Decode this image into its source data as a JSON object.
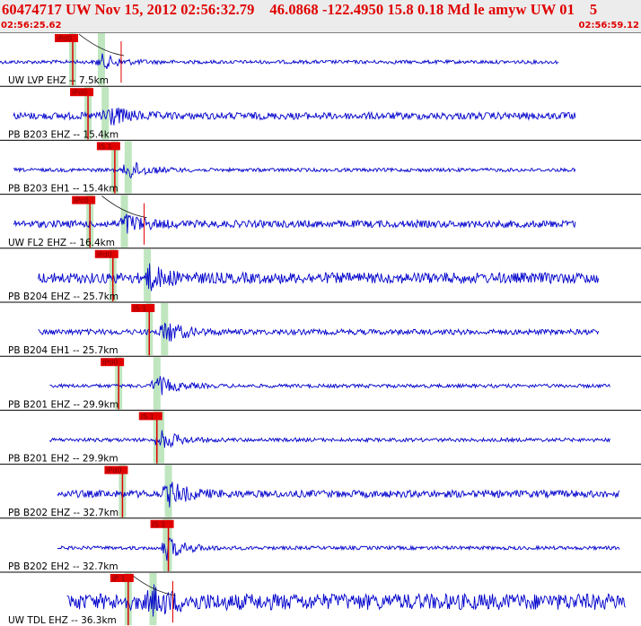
{
  "header": {
    "title": "60474717 UW Nov 15, 2012 02:56:32.79    46.0868 -122.4950 15.8 0.18 Md le amyw UW 01    5",
    "time_start": "02:56:25.62",
    "time_end": "02:56:59.12"
  },
  "colors": {
    "header_bg": "#ececec",
    "header_text": "#e00000",
    "trace": "#0000cc",
    "pick": "#e00000",
    "window": "#bfe6bf"
  },
  "traces": [
    {
      "label": "UW LVP EHZ -- 7.5km",
      "pick": "iPd0",
      "pick_type": "P",
      "pick_time": 3.8,
      "event_time": 5.3,
      "trace_start": 0.0,
      "trace_end": 29.2,
      "amp": 2,
      "burst": 8,
      "theo_mark": true
    },
    {
      "label": "PB B203 EHZ -- 15.4km",
      "pick": "iPd0",
      "pick_type": "P",
      "pick_time": 4.6,
      "event_time": 5.5,
      "trace_start": 0.7,
      "trace_end": 30.1,
      "amp": 4,
      "burst": 13,
      "theo_mark": false
    },
    {
      "label": "PB B203 EH1 -- 15.4km",
      "pick": "iS 1",
      "pick_type": "S",
      "pick_time": 6.0,
      "event_time": 6.7,
      "trace_start": 0.7,
      "trace_end": 30.1,
      "amp": 2,
      "burst": 11,
      "theo_mark": false
    },
    {
      "label": "UW FL2 EHZ -- 16.4km",
      "pick": "iPc0",
      "pick_type": "P",
      "pick_time": 4.7,
      "event_time": 6.5,
      "trace_start": 0.7,
      "trace_end": 30.1,
      "amp": 4,
      "burst": 11,
      "theo_mark": true
    },
    {
      "label": "PB B204 EHZ -- 25.7km",
      "pick": "iPd0",
      "pick_type": "P",
      "pick_time": 5.9,
      "event_time": 7.7,
      "trace_start": 2.0,
      "trace_end": 31.3,
      "amp": 6,
      "burst": 13,
      "theo_mark": false
    },
    {
      "label": "PB B204 EH1 -- 25.7km",
      "pick": "iS 1",
      "pick_type": "S",
      "pick_time": 7.8,
      "event_time": 8.6,
      "trace_start": 2.0,
      "trace_end": 31.3,
      "amp": 3,
      "burst": 13,
      "theo_mark": false
    },
    {
      "label": "PB B201 EHZ -- 29.9km",
      "pick": "iPd0",
      "pick_type": "P",
      "pick_time": 6.2,
      "event_time": 8.2,
      "trace_start": 2.6,
      "trace_end": 31.9,
      "amp": 2,
      "burst": 11,
      "theo_mark": false
    },
    {
      "label": "PB B201 EH2 -- 29.9km",
      "pick": "iS 1",
      "pick_type": "S",
      "pick_time": 8.2,
      "event_time": 8.4,
      "trace_start": 2.6,
      "trace_end": 31.9,
      "amp": 2,
      "burst": 11,
      "theo_mark": false
    },
    {
      "label": "PB B202 EHZ -- 32.7km",
      "pick": "iPd0",
      "pick_type": "P",
      "pick_time": 6.4,
      "event_time": 8.8,
      "trace_start": 3.0,
      "trace_end": 32.4,
      "amp": 4,
      "burst": 13,
      "theo_mark": false
    },
    {
      "label": "PB B202 EH2 -- 32.7km",
      "pick": "iS 1",
      "pick_type": "S",
      "pick_time": 8.8,
      "event_time": 8.7,
      "trace_start": 3.0,
      "trace_end": 32.4,
      "amp": 2,
      "burst": 13,
      "theo_mark": false
    },
    {
      "label": "UW TDL EHZ -- 36.3km",
      "pick": "iP 1",
      "pick_type": "P",
      "pick_time": 6.7,
      "event_time": 8.0,
      "trace_start": 3.5,
      "trace_end": 32.7,
      "amp": 9,
      "burst": 12,
      "theo_mark": true
    }
  ]
}
